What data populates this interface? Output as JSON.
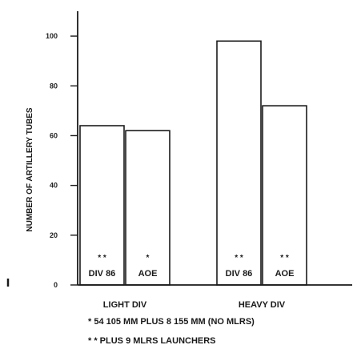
{
  "chart_data": {
    "type": "bar",
    "ylabel": "NUMBER OF ARTILLERY TUBES",
    "ylim": [
      0,
      110
    ],
    "yticks": [
      0,
      20,
      40,
      60,
      80,
      100
    ],
    "grid": false,
    "groups": [
      {
        "label": "LIGHT DIV",
        "bars": [
          {
            "label": "DIV 86",
            "mark": "* *",
            "value": 64
          },
          {
            "label": "AOE",
            "mark": "*",
            "value": 62
          }
        ]
      },
      {
        "label": "HEAVY DIV",
        "bars": [
          {
            "label": "DIV 86",
            "mark": "* *",
            "value": 98
          },
          {
            "label": "AOE",
            "mark": "* *",
            "value": 72
          }
        ]
      }
    ],
    "footnotes": [
      "* 54 105 MM PLUS 8 155 MM (NO MLRS)",
      "* * PLUS 9 MLRS LAUNCHERS"
    ]
  }
}
